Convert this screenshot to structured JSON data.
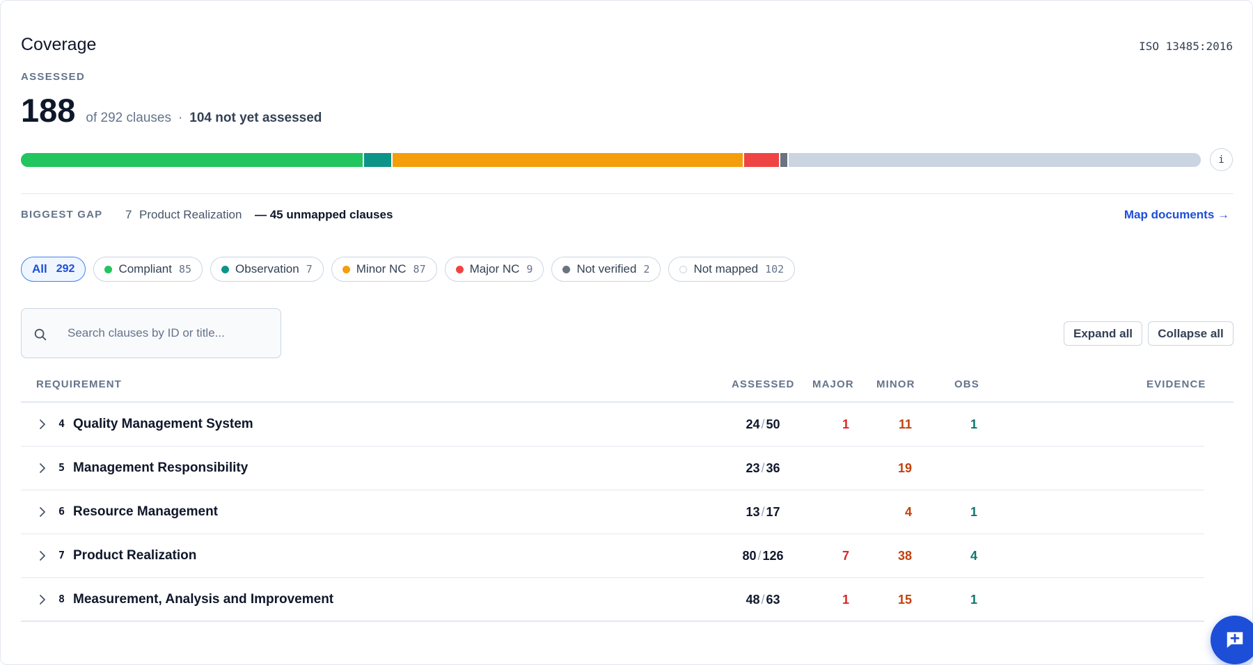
{
  "header": {
    "title": "Coverage",
    "standard": "ISO 13485:2016",
    "assessed_label": "ASSESSED",
    "assessed_count": "188",
    "of_text": "of 292 clauses",
    "separator": "·",
    "not_yet_text": "104 not yet assessed",
    "info_glyph": "i"
  },
  "coverage_bar": {
    "total": 292,
    "segments": [
      {
        "name": "Compliant",
        "count": 85,
        "color": "#22c55e"
      },
      {
        "name": "Observation",
        "count": 7,
        "color": "#0d9488"
      },
      {
        "name": "Minor NC",
        "count": 87,
        "color": "#f59e0b"
      },
      {
        "name": "Major NC",
        "count": 9,
        "color": "#ef4444"
      },
      {
        "name": "Not verified",
        "count": 2,
        "color": "#6b7280"
      },
      {
        "name": "Not mapped",
        "count": 102,
        "color": "#cbd5e1"
      }
    ]
  },
  "gap": {
    "label": "BIGGEST GAP",
    "clause_number": "7",
    "clause_name": "Product Realization",
    "detail": "— 45 unmapped clauses",
    "action": "Map documents →"
  },
  "filters": [
    {
      "label": "All",
      "count": "292",
      "active": true,
      "color": "",
      "icon": ""
    },
    {
      "label": "Compliant",
      "count": "85",
      "active": false,
      "color": "#22c55e",
      "icon": "status-dot"
    },
    {
      "label": "Observation",
      "count": "7",
      "active": false,
      "color": "#0d9488",
      "icon": "status-dot"
    },
    {
      "label": "Minor NC",
      "count": "87",
      "active": false,
      "color": "#f59e0b",
      "icon": "status-dot"
    },
    {
      "label": "Major NC",
      "count": "9",
      "active": false,
      "color": "#ef4444",
      "icon": "status-dot"
    },
    {
      "label": "Not verified",
      "count": "2",
      "active": false,
      "color": "#6b7280",
      "icon": "status-dot"
    },
    {
      "label": "Not mapped",
      "count": "102",
      "active": false,
      "color": "#ffffff",
      "icon": "hollow-dot"
    }
  ],
  "search": {
    "placeholder": "Search clauses by ID or title...",
    "value": "",
    "icon": "search-icon"
  },
  "toolbar": {
    "expand_label": "Expand all",
    "collapse_label": "Collapse all"
  },
  "table": {
    "headers": {
      "requirement": "REQUIREMENT",
      "assessed": "ASSESSED",
      "major": "MAJOR",
      "minor": "MINOR",
      "obs": "OBS",
      "evidence": "EVIDENCE"
    },
    "rows": [
      {
        "num": "4",
        "name": "Quality Management System",
        "assessed": "24",
        "total": "50",
        "major": "1",
        "minor": "11",
        "obs": "1"
      },
      {
        "num": "5",
        "name": "Management Responsibility",
        "assessed": "23",
        "total": "36",
        "major": "",
        "minor": "19",
        "obs": ""
      },
      {
        "num": "6",
        "name": "Resource Management",
        "assessed": "13",
        "total": "17",
        "major": "",
        "minor": "4",
        "obs": "1"
      },
      {
        "num": "7",
        "name": "Product Realization",
        "assessed": "80",
        "total": "126",
        "major": "7",
        "minor": "38",
        "obs": "4"
      },
      {
        "num": "8",
        "name": "Measurement, Analysis and Improvement",
        "assessed": "48",
        "total": "63",
        "major": "1",
        "minor": "15",
        "obs": "1"
      }
    ]
  },
  "fab": {
    "icon": "add-comment-icon"
  },
  "colors": {
    "accent": "#1d4ed8",
    "major": "#dc2626",
    "minor": "#c2410c",
    "obs": "#0f766e"
  }
}
